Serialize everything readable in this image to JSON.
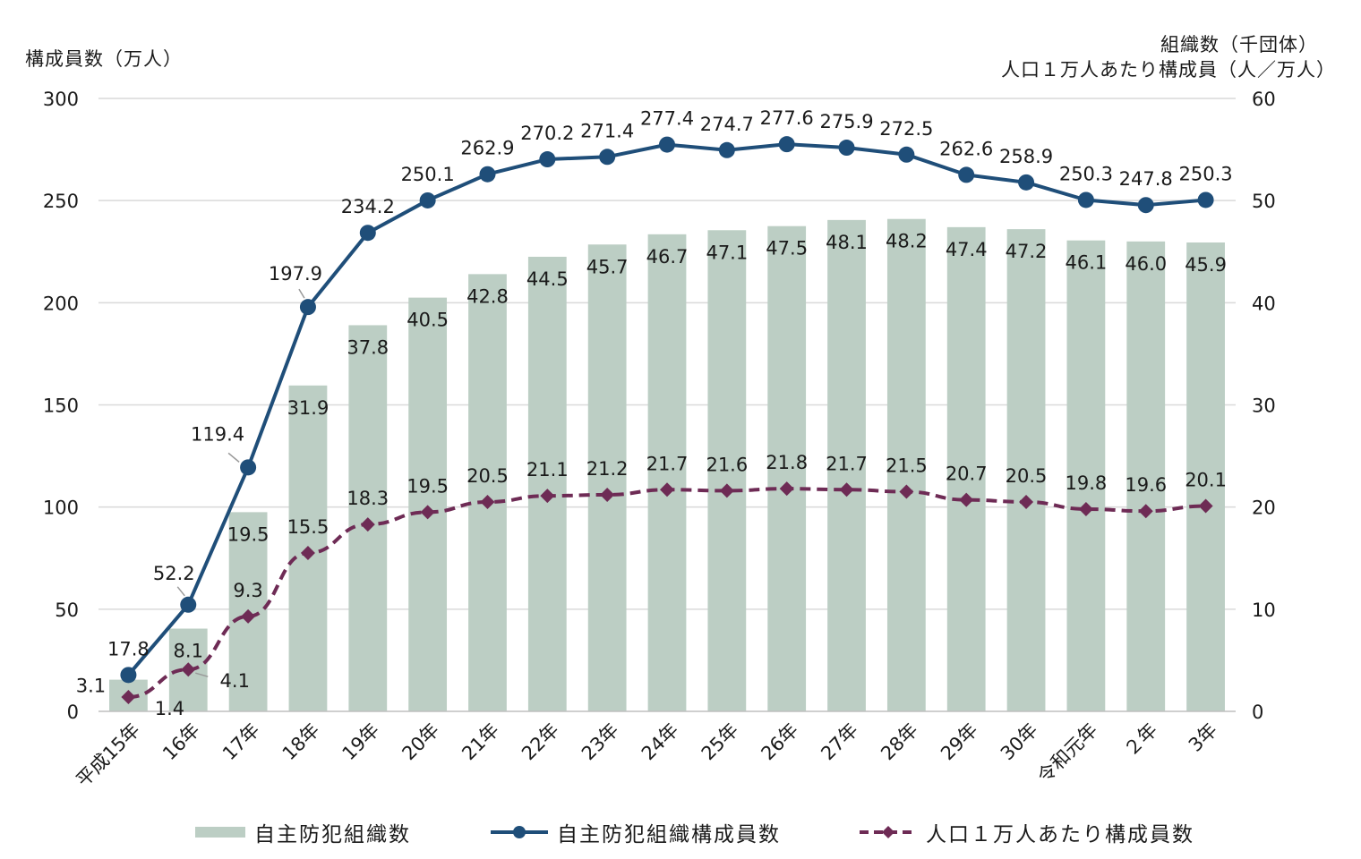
{
  "axis_titles": {
    "left": "構成員数（万人）",
    "right_line1": "組織数（千団体）",
    "right_line2": "人口１万人あたり構成員（人／万人）"
  },
  "chart_data": {
    "type": "bar",
    "categories": [
      "平成15年",
      "16年",
      "17年",
      "18年",
      "19年",
      "20年",
      "21年",
      "22年",
      "23年",
      "24年",
      "25年",
      "26年",
      "27年",
      "28年",
      "29年",
      "30年",
      "令和元年",
      "２年",
      "3年"
    ],
    "series": [
      {
        "name": "自主防犯組織数",
        "type": "bar",
        "axis": "right",
        "color": "#bccec4",
        "values": [
          3.1,
          8.1,
          19.5,
          31.9,
          37.8,
          40.5,
          42.8,
          44.5,
          45.7,
          46.7,
          47.1,
          47.5,
          48.1,
          48.2,
          47.4,
          47.2,
          46.1,
          46.0,
          45.9
        ],
        "labels": [
          "3.1",
          "8.1",
          "19.5",
          "31.9",
          "37.8",
          "40.5",
          "42.8",
          "44.5",
          "45.7",
          "46.7",
          "47.1",
          "47.5",
          "48.1",
          "48.2",
          "47.4",
          "47.2",
          "46.1",
          "46.0",
          "45.9"
        ]
      },
      {
        "name": "自主防犯組織構成員数",
        "type": "line",
        "axis": "left",
        "color": "#1f4e79",
        "values": [
          17.8,
          52.2,
          119.4,
          197.9,
          234.2,
          250.1,
          262.9,
          270.2,
          271.4,
          277.4,
          274.7,
          277.6,
          275.9,
          272.5,
          262.6,
          258.9,
          250.3,
          247.8,
          250.3
        ],
        "labels": [
          "17.8",
          "52.2",
          "119.4",
          "197.9",
          "234.2",
          "250.1",
          "262.9",
          "270.2",
          "271.4",
          "277.4",
          "274.7",
          "277.6",
          "275.9",
          "272.5",
          "262.6",
          "258.9",
          "250.3",
          "247.8",
          "250.3"
        ]
      },
      {
        "name": "人口１万人あたり構成員数",
        "type": "line-dashed",
        "axis": "right",
        "color": "#6e2b55",
        "values": [
          1.4,
          4.1,
          9.3,
          15.5,
          18.3,
          19.5,
          20.5,
          21.1,
          21.2,
          21.7,
          21.6,
          21.8,
          21.7,
          21.5,
          20.7,
          20.5,
          19.8,
          19.6,
          20.1
        ],
        "labels": [
          "1.4",
          "4.1",
          "9.3",
          "15.5",
          "18.3",
          "19.5",
          "20.5",
          "21.1",
          "21.2",
          "21.7",
          "21.6",
          "21.8",
          "21.7",
          "21.5",
          "20.7",
          "20.5",
          "19.8",
          "19.6",
          "20.1"
        ]
      }
    ],
    "y_left": {
      "min": 0,
      "max": 300,
      "ticks": [
        "0",
        "50",
        "100",
        "150",
        "200",
        "250",
        "300"
      ]
    },
    "y_right": {
      "min": 0,
      "max": 60,
      "ticks": [
        "0",
        "10",
        "20",
        "30",
        "40",
        "50",
        "60"
      ]
    },
    "grid": true,
    "legend_position": "bottom"
  }
}
